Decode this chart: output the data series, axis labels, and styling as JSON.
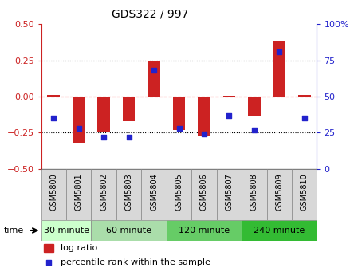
{
  "title": "GDS322 / 997",
  "samples": [
    "GSM5800",
    "GSM5801",
    "GSM5802",
    "GSM5803",
    "GSM5804",
    "GSM5805",
    "GSM5806",
    "GSM5807",
    "GSM5808",
    "GSM5809",
    "GSM5810"
  ],
  "log_ratio": [
    0.01,
    -0.32,
    -0.24,
    -0.17,
    0.25,
    -0.23,
    -0.27,
    0.005,
    -0.13,
    0.38,
    0.01
  ],
  "percentile_rank": [
    35,
    28,
    22,
    22,
    68,
    28,
    24,
    37,
    27,
    81,
    35
  ],
  "bar_color": "#cc2222",
  "dot_color": "#2222cc",
  "ylim": [
    -0.5,
    0.5
  ],
  "yticks_left": [
    -0.5,
    -0.25,
    0,
    0.25,
    0.5
  ],
  "yticks_right": [
    0,
    25,
    50,
    75,
    100
  ],
  "hlines": [
    -0.25,
    0,
    0.25
  ],
  "hline_styles": [
    "dotted",
    "dashed",
    "dotted"
  ],
  "hline_colors": [
    "black",
    "red",
    "black"
  ],
  "time_groups": [
    {
      "label": "30 minute",
      "start": 0,
      "end": 2,
      "color": "#ccffcc"
    },
    {
      "label": "60 minute",
      "start": 2,
      "end": 5,
      "color": "#aaddaa"
    },
    {
      "label": "120 minute",
      "start": 5,
      "end": 8,
      "color": "#66cc66"
    },
    {
      "label": "240 minute",
      "start": 8,
      "end": 11,
      "color": "#33bb33"
    }
  ],
  "legend_bar_label": "log ratio",
  "legend_dot_label": "percentile rank within the sample",
  "time_label": "time",
  "background_color": "#ffffff",
  "sample_bg_color": "#d8d8d8",
  "sample_border_color": "#888888"
}
